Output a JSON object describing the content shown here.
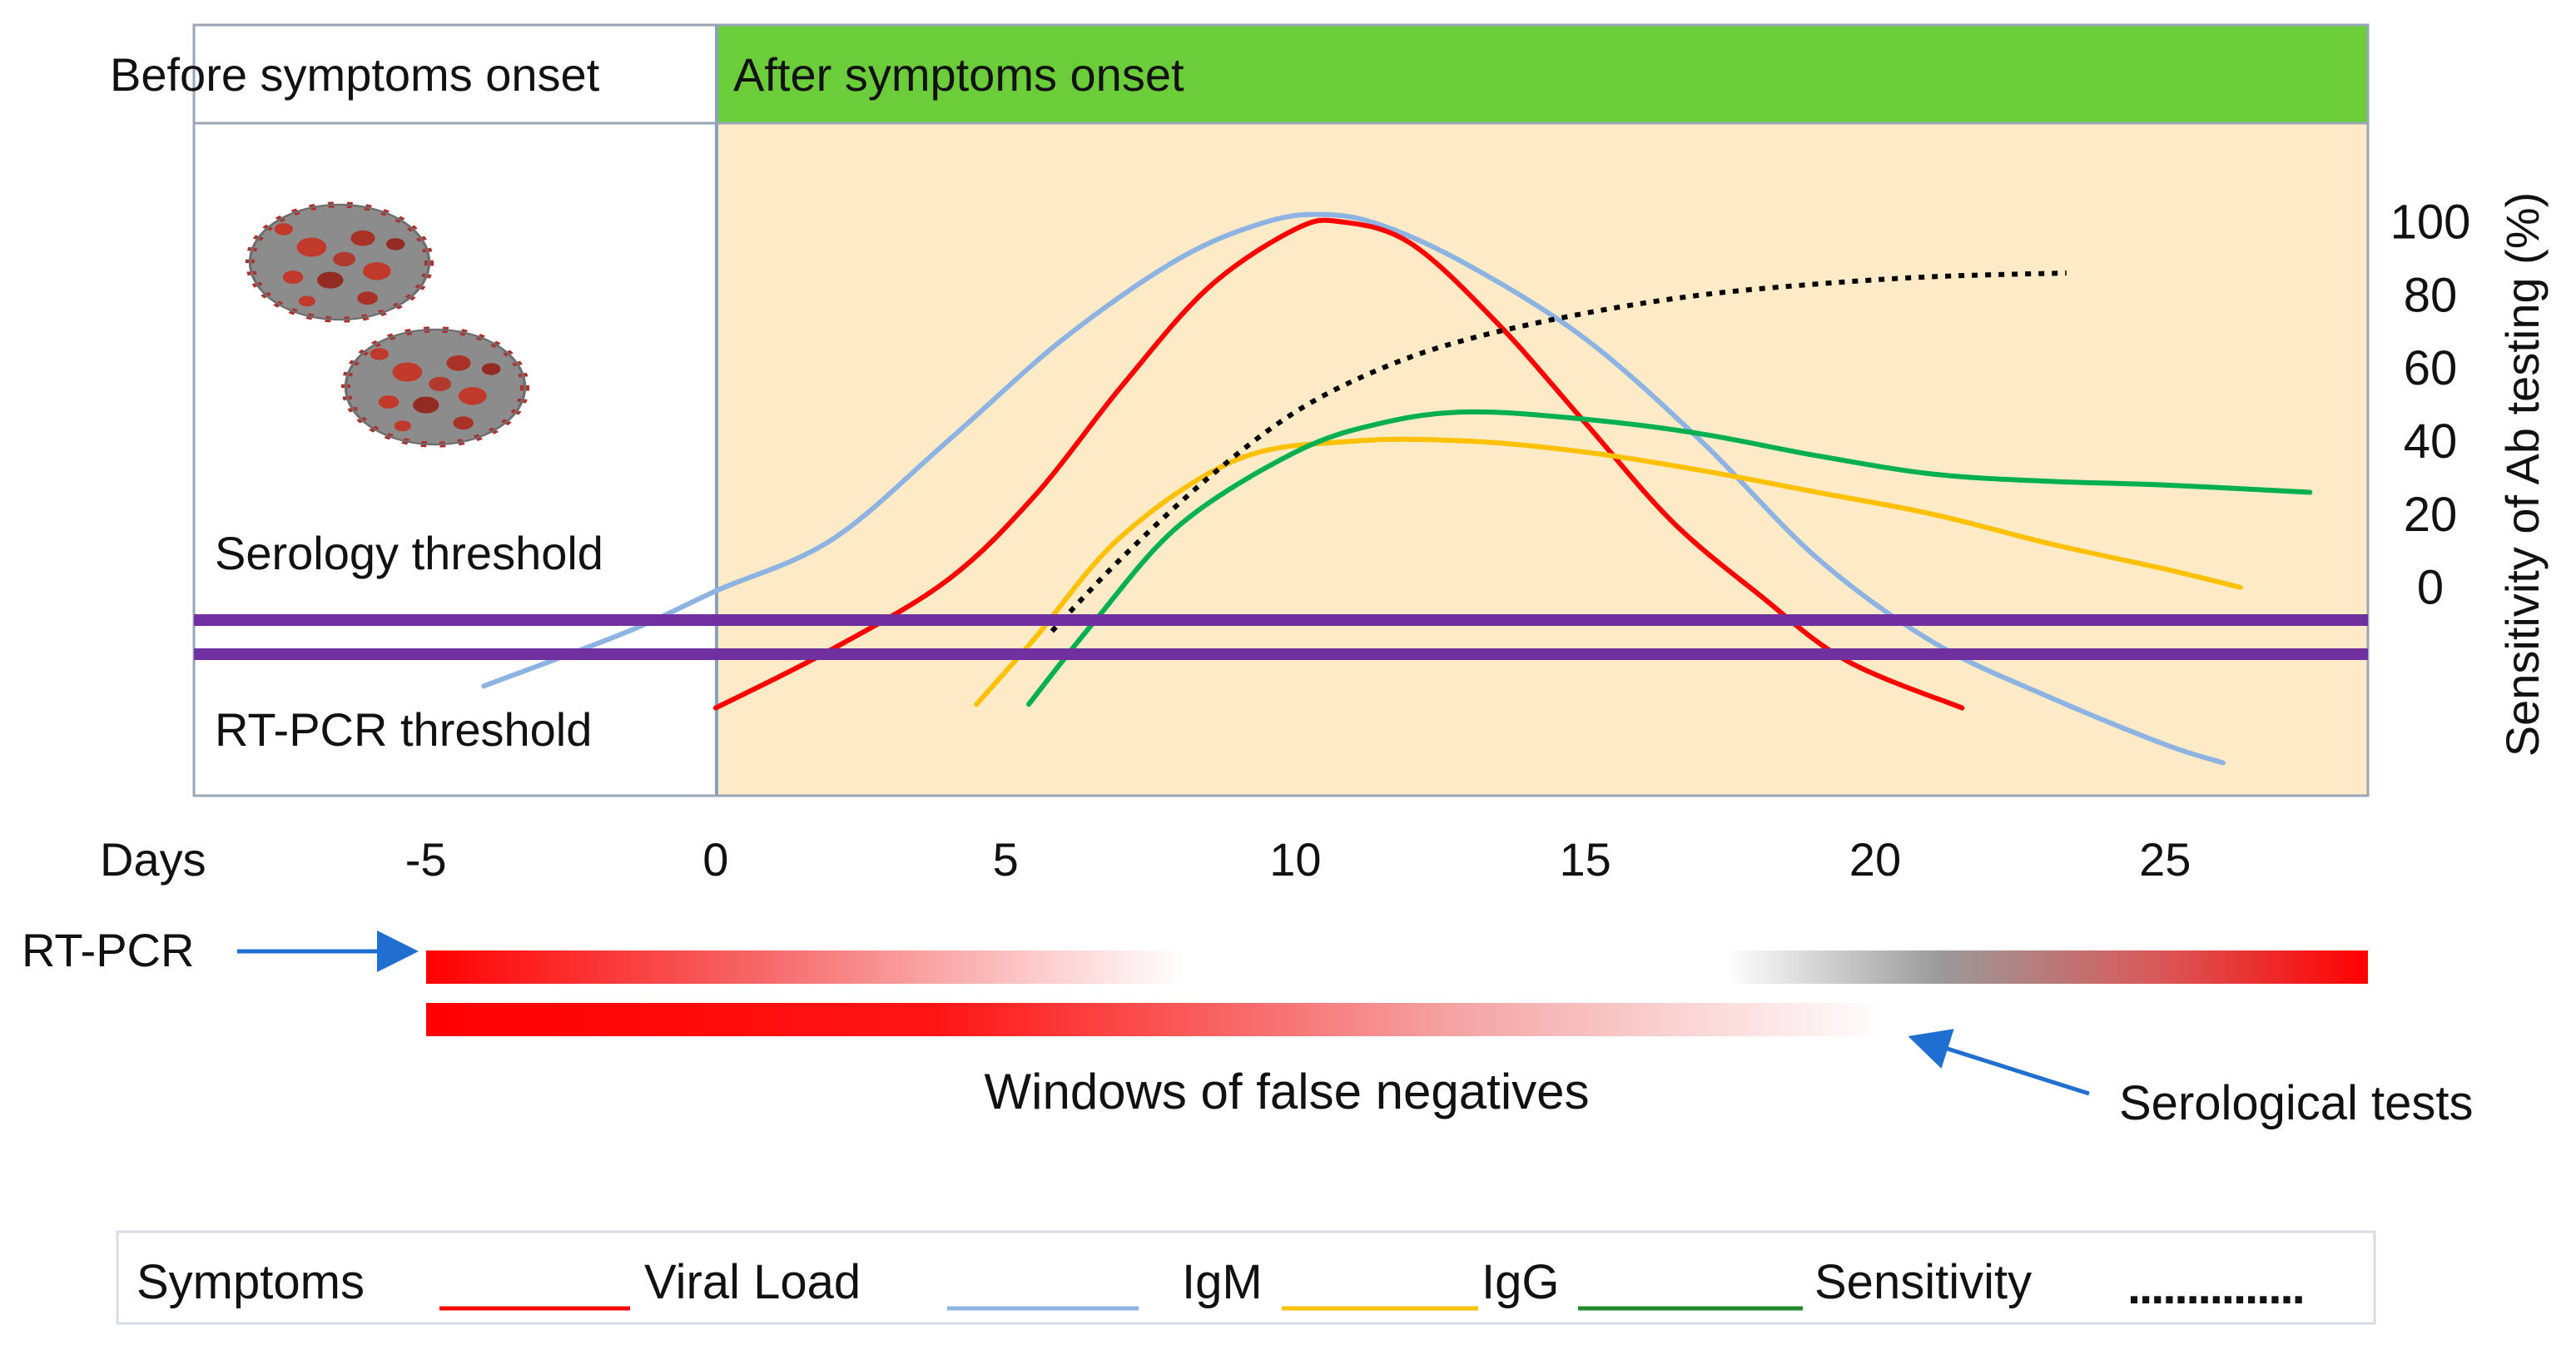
{
  "header": {
    "before_label": "Before symptoms onset",
    "after_label": "After symptoms onset"
  },
  "thresholds": {
    "serology_label": "Serology threshold",
    "rtpcr_label": "RT-PCR threshold"
  },
  "colors": {
    "after_header_bg": "#6ccd3a",
    "after_panel_bg": "#fdebc8",
    "threshold_line": "#7030a0",
    "viral_load": "#ff0000",
    "symptoms": "#8db3e2",
    "igm": "#ffc000",
    "igg": "#00b050",
    "sensitivity": "#000000",
    "arrow": "#1f6fd1",
    "window_bar": "#ff0000"
  },
  "chart_data": {
    "type": "line",
    "title": "",
    "xlabel": "Days",
    "ylabel": "Sensitivity of Ab testing (%)",
    "x_ticks": [
      "-5",
      "0",
      "5",
      "10",
      "15",
      "20",
      "25"
    ],
    "x_tick_values": [
      -5,
      0,
      5,
      10,
      15,
      20,
      25
    ],
    "xlim": [
      -9,
      28.5
    ],
    "y_ticks": [
      "100",
      "80",
      "60",
      "40",
      "20",
      "0"
    ],
    "y_tick_values": [
      100,
      80,
      60,
      40,
      20,
      0
    ],
    "ylim": [
      -57,
      127
    ],
    "series": [
      {
        "name": "Symptoms",
        "legend_label": "Symptoms",
        "style": "solid",
        "color_key": "symptoms",
        "x": [
          -4,
          -1.5,
          0,
          2,
          4,
          6,
          8,
          9.5,
          10.5,
          11.5,
          13,
          15,
          17,
          19,
          21,
          23,
          25,
          26
        ],
        "y": [
          -27,
          -12,
          -1,
          13,
          40,
          68,
          90,
          100,
          102,
          99,
          88,
          68,
          40,
          8,
          -15,
          -30,
          -43,
          -48
        ]
      },
      {
        "name": "Viral Load",
        "legend_label": "Viral Load",
        "style": "solid",
        "color_key": "viral_load",
        "x": [
          0,
          2,
          4,
          5.5,
          7,
          8.5,
          10,
          10.8,
          12,
          13.5,
          15,
          16.5,
          18,
          19.5,
          21.5
        ],
        "y": [
          -33,
          -17,
          2,
          25,
          55,
          82,
          98,
          100,
          94,
          72,
          45,
          18,
          -2,
          -20,
          -33
        ]
      },
      {
        "name": "IgM",
        "legend_label": "IgM",
        "style": "solid",
        "color_key": "igm",
        "x": [
          4.5,
          5.5,
          7,
          9,
          11,
          13,
          15,
          17,
          19,
          21,
          23,
          25,
          26.3
        ],
        "y": [
          -32,
          -14,
          14,
          35,
          40,
          40,
          37,
          32,
          26,
          20,
          12,
          5,
          0
        ]
      },
      {
        "name": "IgG",
        "legend_label": "IgG",
        "style": "solid",
        "color_key": "igg",
        "x": [
          5.4,
          6.5,
          8,
          10,
          11.5,
          13,
          15,
          17,
          19,
          21,
          23,
          25,
          27.5
        ],
        "y": [
          -32,
          -10,
          17,
          37,
          45,
          48,
          46,
          42,
          36,
          31,
          29,
          28,
          26
        ]
      },
      {
        "name": "Sensitivity",
        "legend_label": "Sensitivity",
        "style": "dotted",
        "color_key": "sensitivity",
        "x": [
          5.8,
          7,
          8.5,
          10,
          11.5,
          13,
          15,
          17,
          19,
          21,
          23.3
        ],
        "y": [
          -12,
          8,
          30,
          48,
          60,
          68,
          75,
          80,
          83,
          85,
          86
        ]
      }
    ]
  },
  "bottom": {
    "rtpcr_label": "RT-PCR",
    "windows_label": "Windows of false negatives",
    "serological_label": "Serological tests"
  },
  "legend": {
    "symptoms_label": "Symptoms",
    "viral_load_label": "Viral Load",
    "igm_label": "IgM",
    "igg_label": "IgG",
    "sensitivity_label": "Sensitivity",
    "dots_text": "..............."
  },
  "icons": {
    "virus_top": "coronavirus-icon",
    "virus_bottom": "coronavirus-icon"
  }
}
